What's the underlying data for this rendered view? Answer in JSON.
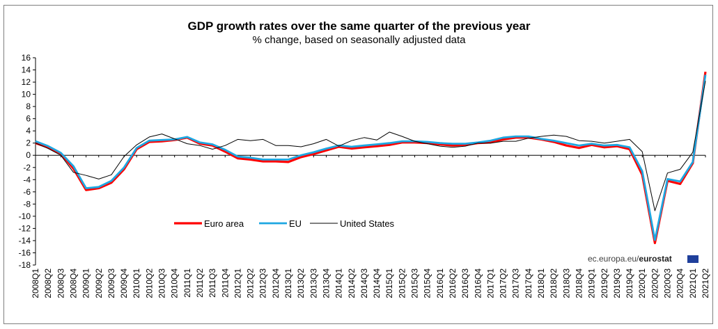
{
  "chart_data": {
    "type": "line",
    "title": "GDP growth rates over the same quarter of the previous year",
    "subtitle": "% change, based on seasonally adjusted data",
    "xlabel": "",
    "ylabel": "",
    "ylim": [
      -18,
      16
    ],
    "yticks": [
      16,
      14,
      12,
      10,
      8,
      6,
      4,
      2,
      0,
      -2,
      -4,
      -6,
      -8,
      -10,
      -12,
      -14,
      -16,
      -18
    ],
    "categories": [
      "2008Q1",
      "2008Q2",
      "2008Q3",
      "2008Q4",
      "2009Q1",
      "2009Q2",
      "2009Q3",
      "2009Q4",
      "2010Q1",
      "2010Q2",
      "2010Q3",
      "2010Q4",
      "2011Q1",
      "2011Q2",
      "2011Q3",
      "2011Q4",
      "2012Q1",
      "2012Q2",
      "2012Q3",
      "2012Q4",
      "2013Q1",
      "2013Q2",
      "2013Q3",
      "2013Q4",
      "2014Q1",
      "2014Q2",
      "2014Q3",
      "2014Q4",
      "2015Q1",
      "2015Q2",
      "2015Q3",
      "2015Q4",
      "2016Q1",
      "2016Q2",
      "2016Q3",
      "2016Q4",
      "2017Q1",
      "2017Q2",
      "2017Q3",
      "2017Q4",
      "2018Q1",
      "2018Q2",
      "2018Q3",
      "2018Q4",
      "2019Q1",
      "2019Q2",
      "2019Q3",
      "2019Q4",
      "2020Q1",
      "2020Q2",
      "2020Q3",
      "2020Q4",
      "2021Q1",
      "2021Q2"
    ],
    "series": [
      {
        "name": "Euro area",
        "color": "#ff0000",
        "values": [
          2.0,
          1.3,
          0.3,
          -2.2,
          -5.7,
          -5.4,
          -4.5,
          -2.3,
          1.0,
          2.2,
          2.3,
          2.5,
          2.9,
          1.9,
          1.6,
          0.6,
          -0.5,
          -0.7,
          -1.0,
          -1.0,
          -1.1,
          -0.3,
          0.2,
          0.8,
          1.4,
          1.1,
          1.3,
          1.5,
          1.7,
          2.1,
          2.1,
          2.0,
          1.8,
          1.6,
          1.7,
          2.0,
          2.1,
          2.6,
          2.9,
          2.9,
          2.6,
          2.2,
          1.6,
          1.2,
          1.7,
          1.3,
          1.5,
          1.0,
          -3.2,
          -14.4,
          -4.2,
          -4.7,
          -1.3,
          13.7
        ]
      },
      {
        "name": "EU",
        "color": "#1ea7e1",
        "values": [
          2.3,
          1.5,
          0.4,
          -1.8,
          -5.4,
          -5.2,
          -4.2,
          -2.0,
          1.2,
          2.4,
          2.5,
          2.6,
          3.0,
          2.1,
          1.8,
          0.9,
          -0.2,
          -0.4,
          -0.7,
          -0.7,
          -0.7,
          0.0,
          0.5,
          1.1,
          1.6,
          1.4,
          1.6,
          1.8,
          2.0,
          2.3,
          2.3,
          2.2,
          2.0,
          1.9,
          1.9,
          2.1,
          2.4,
          2.9,
          3.1,
          3.1,
          2.7,
          2.4,
          2.0,
          1.6,
          1.9,
          1.6,
          1.7,
          1.3,
          -2.6,
          -13.9,
          -3.9,
          -4.3,
          -1.1,
          13.2
        ]
      },
      {
        "name": "United States",
        "color": "#000000",
        "values": [
          2.0,
          1.1,
          0.0,
          -2.8,
          -3.3,
          -3.9,
          -3.2,
          -0.2,
          1.7,
          3.0,
          3.5,
          2.7,
          1.9,
          1.6,
          1.0,
          1.6,
          2.6,
          2.4,
          2.6,
          1.6,
          1.6,
          1.4,
          1.9,
          2.6,
          1.5,
          2.4,
          2.9,
          2.5,
          3.8,
          3.1,
          2.3,
          1.9,
          1.5,
          1.3,
          1.5,
          2.0,
          2.0,
          2.3,
          2.3,
          2.8,
          3.1,
          3.3,
          3.1,
          2.4,
          2.3,
          2.0,
          2.3,
          2.6,
          0.6,
          -9.1,
          -2.9,
          -2.3,
          0.5,
          12.2
        ]
      }
    ],
    "grid": false,
    "legend_position": "lower-left"
  },
  "source": {
    "prefix": "ec.europa.eu/",
    "brand": "eurostat"
  }
}
